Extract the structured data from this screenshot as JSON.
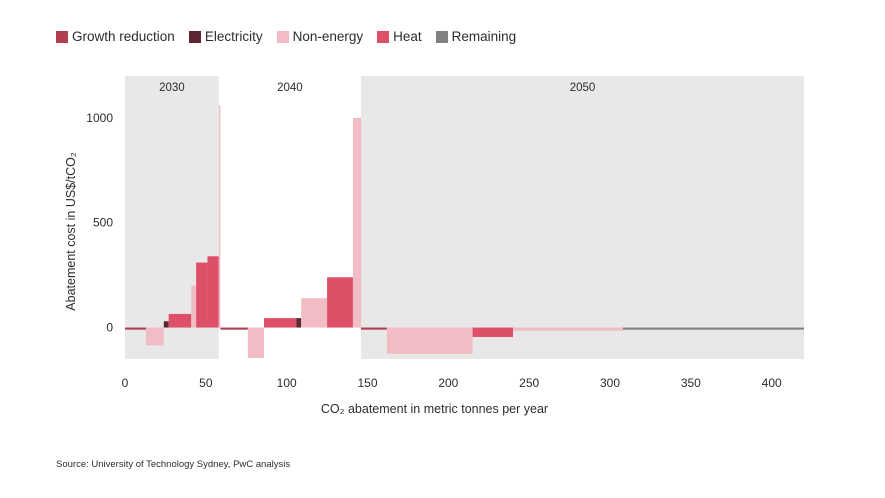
{
  "legend": [
    {
      "label": "Growth reduction",
      "color": "#b0404f"
    },
    {
      "label": "Electricity",
      "color": "#5c2632"
    },
    {
      "label": "Non-energy",
      "color": "#f1bcc3"
    },
    {
      "label": "Heat",
      "color": "#de5068"
    },
    {
      "label": "Remaining",
      "color": "#808080"
    }
  ],
  "source": "Source: University of Technology Sydney, PwC analysis",
  "chart_data": {
    "type": "bar",
    "subtype": "marginal-abatement-cost-curve",
    "title": "",
    "xlabel": "CO₂ abatement in metric tonnes per year",
    "ylabel": "Abatement cost in US$/tCO₂",
    "xlim": [
      0,
      420
    ],
    "ylim": [
      -150,
      1200
    ],
    "xticks": [
      0,
      50,
      100,
      150,
      200,
      250,
      300,
      350,
      400
    ],
    "yticks": [
      0,
      500,
      1000
    ],
    "periods": [
      {
        "label": "2030",
        "start": 0,
        "end": 58
      },
      {
        "label": "2040",
        "start": 58,
        "end": 146
      },
      {
        "label": "2050",
        "start": 146,
        "end": 420
      }
    ],
    "bars": [
      {
        "category": "Growth reduction",
        "x0": 0,
        "x1": 13,
        "value": -10
      },
      {
        "category": "Non-energy",
        "x0": 13,
        "x1": 24,
        "value": -85
      },
      {
        "category": "Electricity",
        "x0": 24,
        "x1": 27,
        "value": 30
      },
      {
        "category": "Heat",
        "x0": 27,
        "x1": 41,
        "value": 65
      },
      {
        "category": "Non-energy",
        "x0": 41,
        "x1": 44,
        "value": 200
      },
      {
        "category": "Heat",
        "x0": 44,
        "x1": 51,
        "value": 310
      },
      {
        "category": "Heat",
        "x0": 51,
        "x1": 58,
        "value": 340
      },
      {
        "category": "Non-energy",
        "x0": 58,
        "x1": 59,
        "value": 1060
      },
      {
        "category": "Growth reduction",
        "x0": 59,
        "x1": 76,
        "value": -10
      },
      {
        "category": "Non-energy",
        "x0": 76,
        "x1": 86,
        "value": -145
      },
      {
        "category": "Heat",
        "x0": 86,
        "x1": 106,
        "value": 45
      },
      {
        "category": "Electricity",
        "x0": 106,
        "x1": 109,
        "value": 45
      },
      {
        "category": "Non-energy",
        "x0": 109,
        "x1": 125,
        "value": 140
      },
      {
        "category": "Heat",
        "x0": 125,
        "x1": 141,
        "value": 240
      },
      {
        "category": "Non-energy",
        "x0": 141,
        "x1": 146,
        "value": 1000
      },
      {
        "category": "Growth reduction",
        "x0": 146,
        "x1": 162,
        "value": -10
      },
      {
        "category": "Non-energy",
        "x0": 162,
        "x1": 215,
        "value": -125
      },
      {
        "category": "Heat",
        "x0": 215,
        "x1": 240,
        "value": -45
      },
      {
        "category": "Non-energy",
        "x0": 240,
        "x1": 308,
        "value": -15
      },
      {
        "category": "Remaining",
        "x0": 308,
        "x1": 420,
        "value": -10
      }
    ]
  }
}
